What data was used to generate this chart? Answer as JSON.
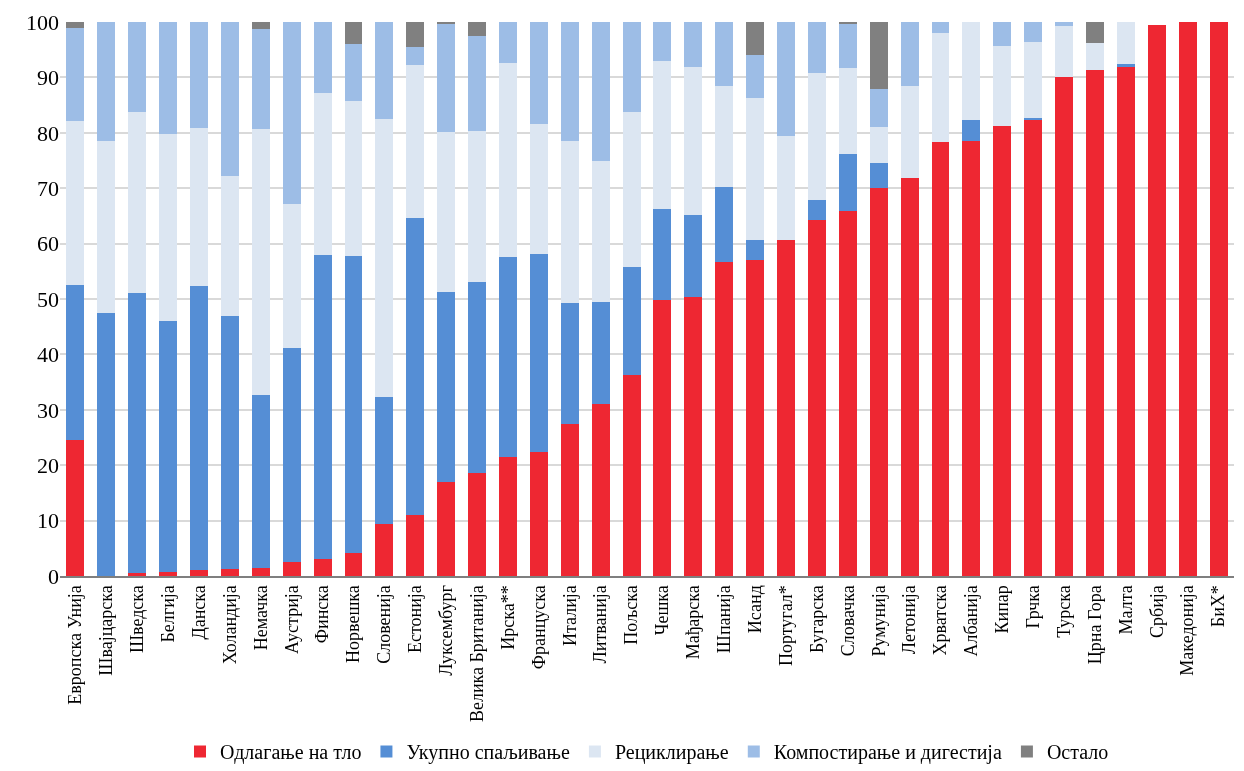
{
  "chart_data": {
    "type": "bar",
    "stacked": true,
    "categories": [
      "Европска Унија",
      "Швајцарска",
      "Шведска",
      "Белгија",
      "Данска",
      "Холандија",
      "Немачка",
      "Аустрија",
      "Финска",
      "Норвешка",
      "Словенија",
      "Естонија",
      "Луксембург",
      "Велика Британија",
      "Ирска**",
      "Француска",
      "Италија",
      "Литванија",
      "Пољска",
      "Чешка",
      "Мађарска",
      "Шпанија",
      "Исанд",
      "Португал*",
      "Бугарска",
      "Словачка",
      "Румунија",
      "Летонија",
      "Хрватска",
      "Албанија",
      "Кипар",
      "Грчка",
      "Турска",
      "Црна Гора",
      "Малта",
      "Србија",
      "Македонија",
      "БиХ*"
    ],
    "series": [
      {
        "name": "Одлагање на тло",
        "color": "#ee2732",
        "values": [
          24.5,
          0,
          0.6,
          0.7,
          1,
          1.3,
          1.5,
          2.6,
          3.1,
          4.1,
          9.4,
          11.1,
          16.9,
          18.6,
          21.5,
          22.3,
          27.5,
          31.1,
          36.3,
          49.9,
          50.4,
          56.6,
          57.1,
          60.7,
          64.2,
          65.8,
          70,
          71.8,
          78.3,
          78.5,
          81.2,
          82.3,
          90,
          91.4,
          91.9,
          99.5,
          100,
          100
        ]
      },
      {
        "name": "Укупно спаљивање",
        "color": "#558ed5",
        "values": [
          28,
          47.5,
          50.5,
          45.3,
          51.3,
          45.7,
          31.2,
          38.6,
          54.9,
          53.7,
          23,
          53.6,
          34.3,
          34.5,
          36.1,
          35.9,
          21.8,
          18.3,
          19.5,
          16.3,
          14.8,
          13.6,
          3.6,
          0,
          3.7,
          10.4,
          4.5,
          0,
          0,
          3.9,
          0,
          0.4,
          0,
          0,
          0.5,
          0,
          0,
          0
        ]
      },
      {
        "name": "Рециклирање",
        "color": "#dce6f2",
        "values": [
          29.7,
          31,
          32.7,
          33.7,
          28.6,
          25.2,
          48,
          25.9,
          29.1,
          28,
          50.1,
          27.6,
          28.9,
          27.3,
          35,
          23.4,
          29.2,
          25.6,
          27.9,
          26.8,
          26.7,
          18.2,
          25.5,
          18.7,
          22.9,
          15.5,
          6.5,
          16.7,
          19.7,
          17.6,
          14.4,
          13.7,
          9.3,
          4.8,
          7.6,
          0,
          0,
          0
        ]
      },
      {
        "name": "Компостирање и дигестија",
        "color": "#9dbde6",
        "values": [
          16.8,
          21.5,
          16.2,
          20.3,
          19.1,
          27.8,
          18.1,
          32.9,
          12.9,
          10.3,
          17.5,
          3.1,
          19.6,
          17.1,
          7.4,
          18.4,
          21.5,
          25,
          16.3,
          7,
          8.1,
          11.6,
          7.9,
          20.6,
          9.2,
          8,
          6.9,
          11.5,
          2,
          0,
          4.4,
          3.6,
          0.7,
          0,
          0,
          0,
          0,
          0
        ]
      },
      {
        "name": "Остало",
        "color": "#808080",
        "values": [
          1,
          0,
          0,
          0,
          0,
          0,
          1.2,
          0,
          0,
          3.9,
          0,
          4.6,
          0.3,
          2.5,
          0,
          0,
          0,
          0,
          0,
          0,
          0,
          0,
          5.9,
          0,
          0,
          0.3,
          12.1,
          0,
          0,
          0,
          0,
          0,
          0,
          3.8,
          0,
          0,
          0,
          0
        ]
      }
    ],
    "ylim": [
      0,
      100
    ],
    "yticks": [
      0,
      10,
      20,
      30,
      40,
      50,
      60,
      70,
      80,
      90,
      100
    ],
    "grid": "y",
    "legend": "bottom"
  }
}
